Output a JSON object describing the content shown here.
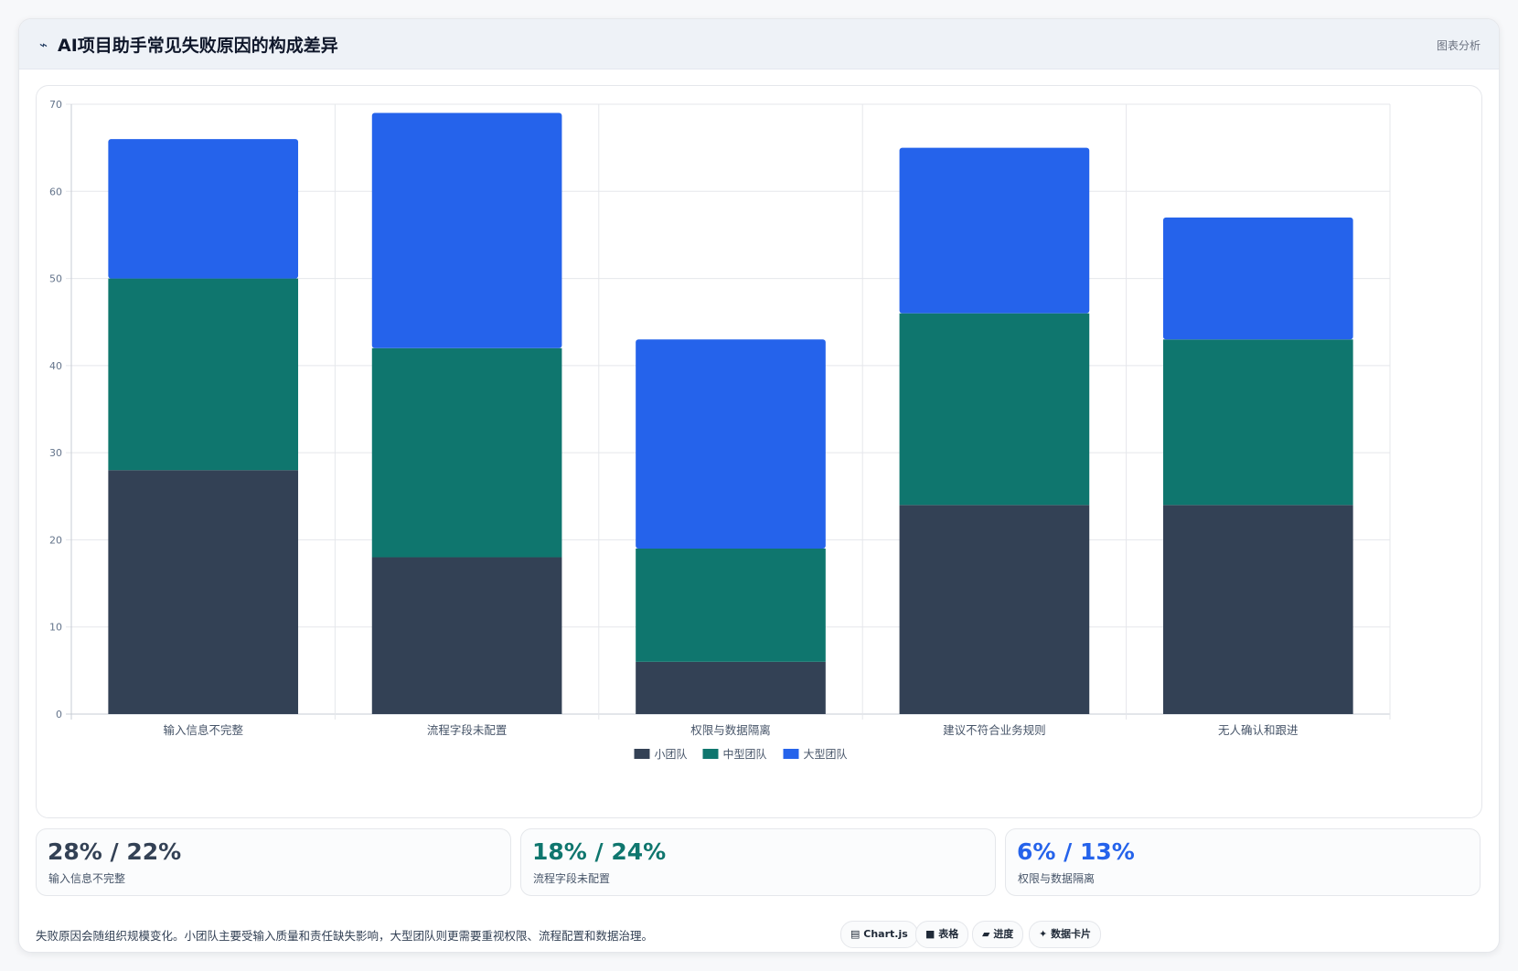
{
  "header": {
    "icon": "pulse-icon",
    "title": "AI项目助手常见失败原因的构成差异",
    "right_label": "图表分析"
  },
  "chart_data": {
    "type": "bar",
    "stacked": true,
    "categories": [
      "输入信息不完整",
      "流程字段未配置",
      "权限与数据隔离",
      "建议不符合业务规则",
      "无人确认和跟进"
    ],
    "series": [
      {
        "name": "小团队",
        "color": "#334155",
        "values": [
          28,
          18,
          6,
          24,
          24
        ]
      },
      {
        "name": "中型团队",
        "color": "#0f766e",
        "values": [
          22,
          24,
          13,
          22,
          19
        ]
      },
      {
        "name": "大型团队",
        "color": "#2563eb",
        "values": [
          16,
          27,
          24,
          19,
          14
        ]
      }
    ],
    "ylim": [
      0,
      70
    ],
    "yticks": [
      0,
      10,
      20,
      30,
      40,
      50,
      60,
      70
    ],
    "grid": true,
    "legend": "bottom"
  },
  "stats": [
    {
      "value": "28% / 22%",
      "label": "输入信息不完整",
      "color": "#334155"
    },
    {
      "value": "18% / 24%",
      "label": "流程字段未配置",
      "color": "#0f766e"
    },
    {
      "value": "6% / 13%",
      "label": "权限与数据隔离",
      "color": "#2563eb"
    }
  ],
  "footer": {
    "note": "失败原因会随组织规模变化。小团队主要受输入质量和责任缺失影响，大型团队则更需要重视权限、流程配置和数据治理。",
    "chips": [
      {
        "icon": "chart-icon",
        "glyph": "▤",
        "label": "Chart.js"
      },
      {
        "icon": "table-icon",
        "glyph": "■",
        "label": "表格"
      },
      {
        "icon": "progress-icon",
        "glyph": "▰",
        "label": "进度"
      },
      {
        "icon": "sparkle-icon",
        "glyph": "✦",
        "label": "数据卡片"
      }
    ]
  }
}
